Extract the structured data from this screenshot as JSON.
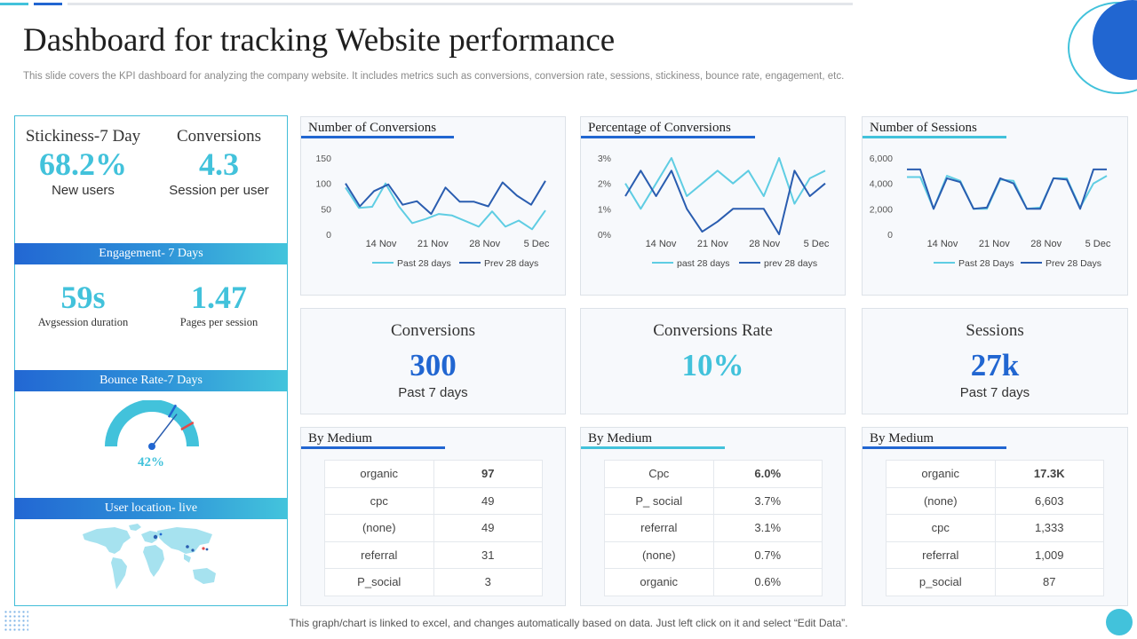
{
  "title": "Dashboard for tracking Website performance",
  "subtitle": "This slide covers the KPI dashboard for analyzing the company website. It includes metrics such as conversions, conversion rate, sessions, stickiness, bounce rate, engagement, etc.",
  "colors": {
    "dark_blue": "#2166d1",
    "light_blue": "#42c2db",
    "line_light": "#5fcde3",
    "line_dark": "#2a5db0"
  },
  "left": {
    "stickiness": {
      "label": "Stickiness-7 Day",
      "value": "68.2%",
      "sub": "New users"
    },
    "conversions": {
      "label": "Conversions",
      "value": "4.3",
      "sub": "Session per user"
    },
    "engagement_band": "Engagement- 7 Days",
    "avg_session": {
      "value": "59s",
      "sub": "Avgsession duration"
    },
    "pages_per_session": {
      "value": "1.47",
      "sub": "Pages per session"
    },
    "bounce_band": "Bounce Rate-7 Days",
    "bounce_value": "42%",
    "bounce_fraction": 0.42,
    "location_band": "User location- live",
    "map_icon": "world-map-icon"
  },
  "charts": [
    {
      "title": "Number of Conversions",
      "type": "line",
      "yticks": [
        "150",
        "100",
        "50",
        "0"
      ],
      "ylim": [
        0,
        150
      ],
      "xticks": [
        "14 Nov",
        "21 Nov",
        "28 Nov",
        "5 Dec"
      ],
      "series": [
        {
          "name": "Past 28 days",
          "values": [
            92,
            52,
            54,
            100,
            55,
            22,
            30,
            40,
            37,
            26,
            15,
            45,
            15,
            27,
            10,
            47
          ]
        },
        {
          "name": "Prev 28 days",
          "values": [
            100,
            55,
            85,
            98,
            58,
            65,
            40,
            92,
            64,
            64,
            55,
            102,
            76,
            58,
            105
          ]
        }
      ]
    },
    {
      "title": "Percentage of Conversions",
      "type": "line",
      "yticks": [
        "3%",
        "2%",
        "1%",
        "0%"
      ],
      "ylim": [
        0,
        3
      ],
      "xticks": [
        "14 Nov",
        "21 Nov",
        "28 Nov",
        "5 Dec"
      ],
      "series": [
        {
          "name": "past 28 days",
          "values": [
            2.0,
            1.0,
            2.0,
            3.0,
            1.5,
            2.0,
            2.5,
            2.0,
            2.5,
            1.5,
            3.0,
            1.2,
            2.2,
            2.5
          ]
        },
        {
          "name": "prev 28 days",
          "values": [
            1.5,
            2.5,
            1.5,
            2.5,
            1.0,
            0.1,
            0.5,
            1.0,
            1.0,
            1.0,
            0.0,
            2.5,
            1.5,
            2.0
          ]
        }
      ]
    },
    {
      "title": "Number of Sessions",
      "type": "line",
      "yticks": [
        "6,000",
        "4,000",
        "2,000",
        "0"
      ],
      "ylim": [
        0,
        6000
      ],
      "xticks": [
        "14 Nov",
        "21 Nov",
        "28 Nov",
        "5 Dec"
      ],
      "series": [
        {
          "name": "Past 28 Days",
          "values": [
            4500,
            4500,
            2000,
            4600,
            4200,
            2000,
            2000,
            4300,
            4200,
            2000,
            2100,
            4400,
            4400,
            2100,
            4000,
            4600
          ]
        },
        {
          "name": "Prev 28 Days",
          "values": [
            5100,
            5100,
            2000,
            4400,
            4100,
            2000,
            2100,
            4400,
            4000,
            2000,
            2000,
            4400,
            4300,
            2000,
            5100,
            5100
          ]
        }
      ]
    }
  ],
  "stats": [
    {
      "label": "Conversions",
      "value": "300",
      "sub": "Past 7 days"
    },
    {
      "label": "Conversions Rate",
      "value": "10%",
      "sub": ""
    },
    {
      "label": "Sessions",
      "value": "27k",
      "sub": "Past 7 days"
    }
  ],
  "mediums": [
    {
      "title": "By Medium",
      "rows": [
        [
          "organic",
          "97"
        ],
        [
          "cpc",
          "49"
        ],
        [
          "(none)",
          "49"
        ],
        [
          "referral",
          "31"
        ],
        [
          "P_social",
          "3"
        ]
      ]
    },
    {
      "title": "By Medium",
      "rows": [
        [
          "Cpc",
          "6.0%"
        ],
        [
          "P_ social",
          "3.7%"
        ],
        [
          "referral",
          "3.1%"
        ],
        [
          "(none)",
          "0.7%"
        ],
        [
          "organic",
          "0.6%"
        ]
      ]
    },
    {
      "title": "By Medium",
      "rows": [
        [
          "organic",
          "17.3K"
        ],
        [
          "(none)",
          "6,603"
        ],
        [
          "cpc",
          "1,333"
        ],
        [
          "referral",
          "1,009"
        ],
        [
          "p_social",
          "87"
        ]
      ]
    }
  ],
  "footer": "This graph/chart is linked to excel,  and changes automatically based on data. Just left click on it and select “Edit Data”."
}
